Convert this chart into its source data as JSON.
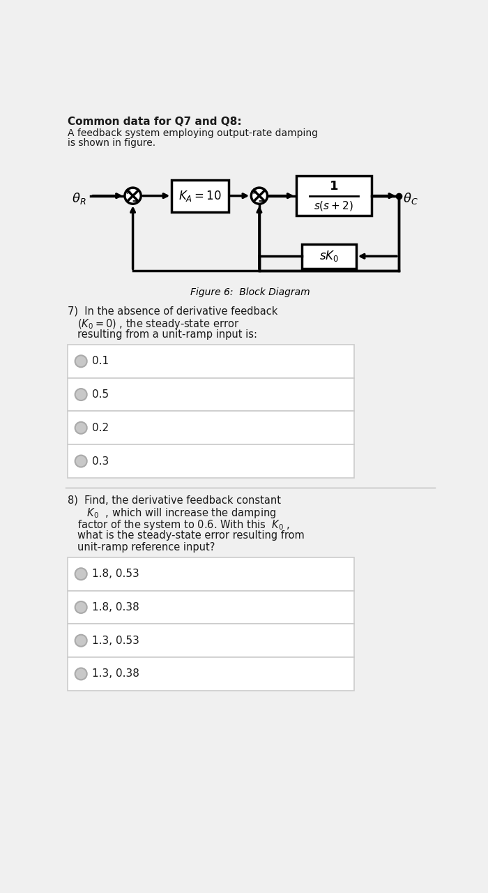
{
  "title": "Common data for Q7 and Q8:",
  "description_line1": "A feedback system employing output-rate damping",
  "description_line2": "is shown in figure.",
  "figure_caption": "Figure 6:  Block Diagram",
  "q7_line1": "7)  In the absence of derivative feedback",
  "q7_line2": "($K_0 = 0$) , the steady-state error",
  "q7_line3": "resulting from a unit-ramp input is:",
  "q7_options": [
    "0.1",
    "0.5",
    "0.2",
    "0.3"
  ],
  "q8_line1": "8)  Find, the derivative feedback constant",
  "q8_line2": "   $K_0$  , which will increase the damping",
  "q8_line3": "factor of the system to 0.6. With this  $K_0$ ,",
  "q8_line4": "what is the steady-state error resulting from",
  "q8_line5": "unit-ramp reference input?",
  "q8_options": [
    "1.8, 0.53",
    "1.8, 0.38",
    "1.3, 0.53",
    "1.3, 0.38"
  ],
  "bg_color": "#f0f0f0",
  "white": "#ffffff",
  "border_color": "#cccccc",
  "text_color": "#1a1a1a",
  "radio_edge": "#aaaaaa",
  "radio_fill": "#c8c8c8"
}
